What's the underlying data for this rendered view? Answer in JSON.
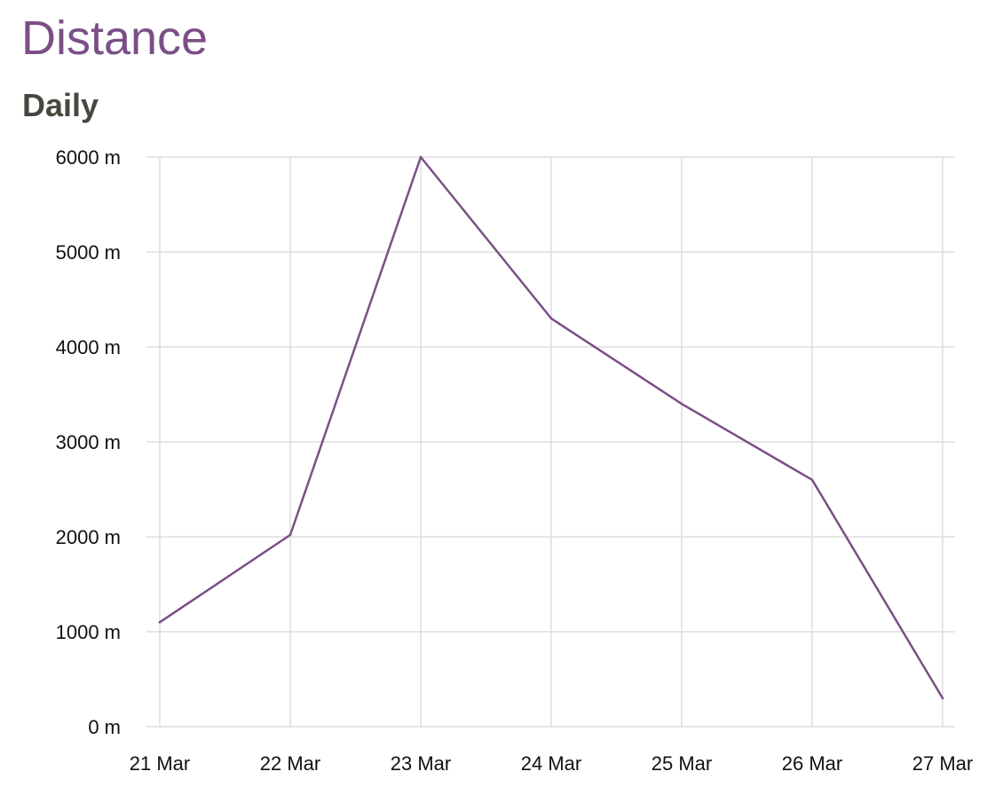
{
  "page": {
    "title": "Distance",
    "subtitle": "Daily"
  },
  "colors": {
    "title": "#7b4f86",
    "subtitle": "#46483f",
    "line": "#7b4f86",
    "grid": "#dddddd"
  },
  "chart_data": {
    "type": "line",
    "title": "",
    "xlabel": "",
    "ylabel": "",
    "categories": [
      "21 Mar",
      "22 Mar",
      "23 Mar",
      "24 Mar",
      "25 Mar",
      "26 Mar",
      "27 Mar"
    ],
    "series": [
      {
        "values": [
          1100,
          2020,
          6000,
          4300,
          3400,
          2600,
          300
        ]
      }
    ],
    "y_ticks": [
      0,
      1000,
      2000,
      3000,
      4000,
      5000,
      6000
    ],
    "y_tick_labels": [
      "0 m",
      "1000 m",
      "2000 m",
      "3000 m",
      "4000 m",
      "5000 m",
      "6000 m"
    ],
    "ylim": [
      0,
      6000
    ],
    "grid": true,
    "legend": "none"
  }
}
